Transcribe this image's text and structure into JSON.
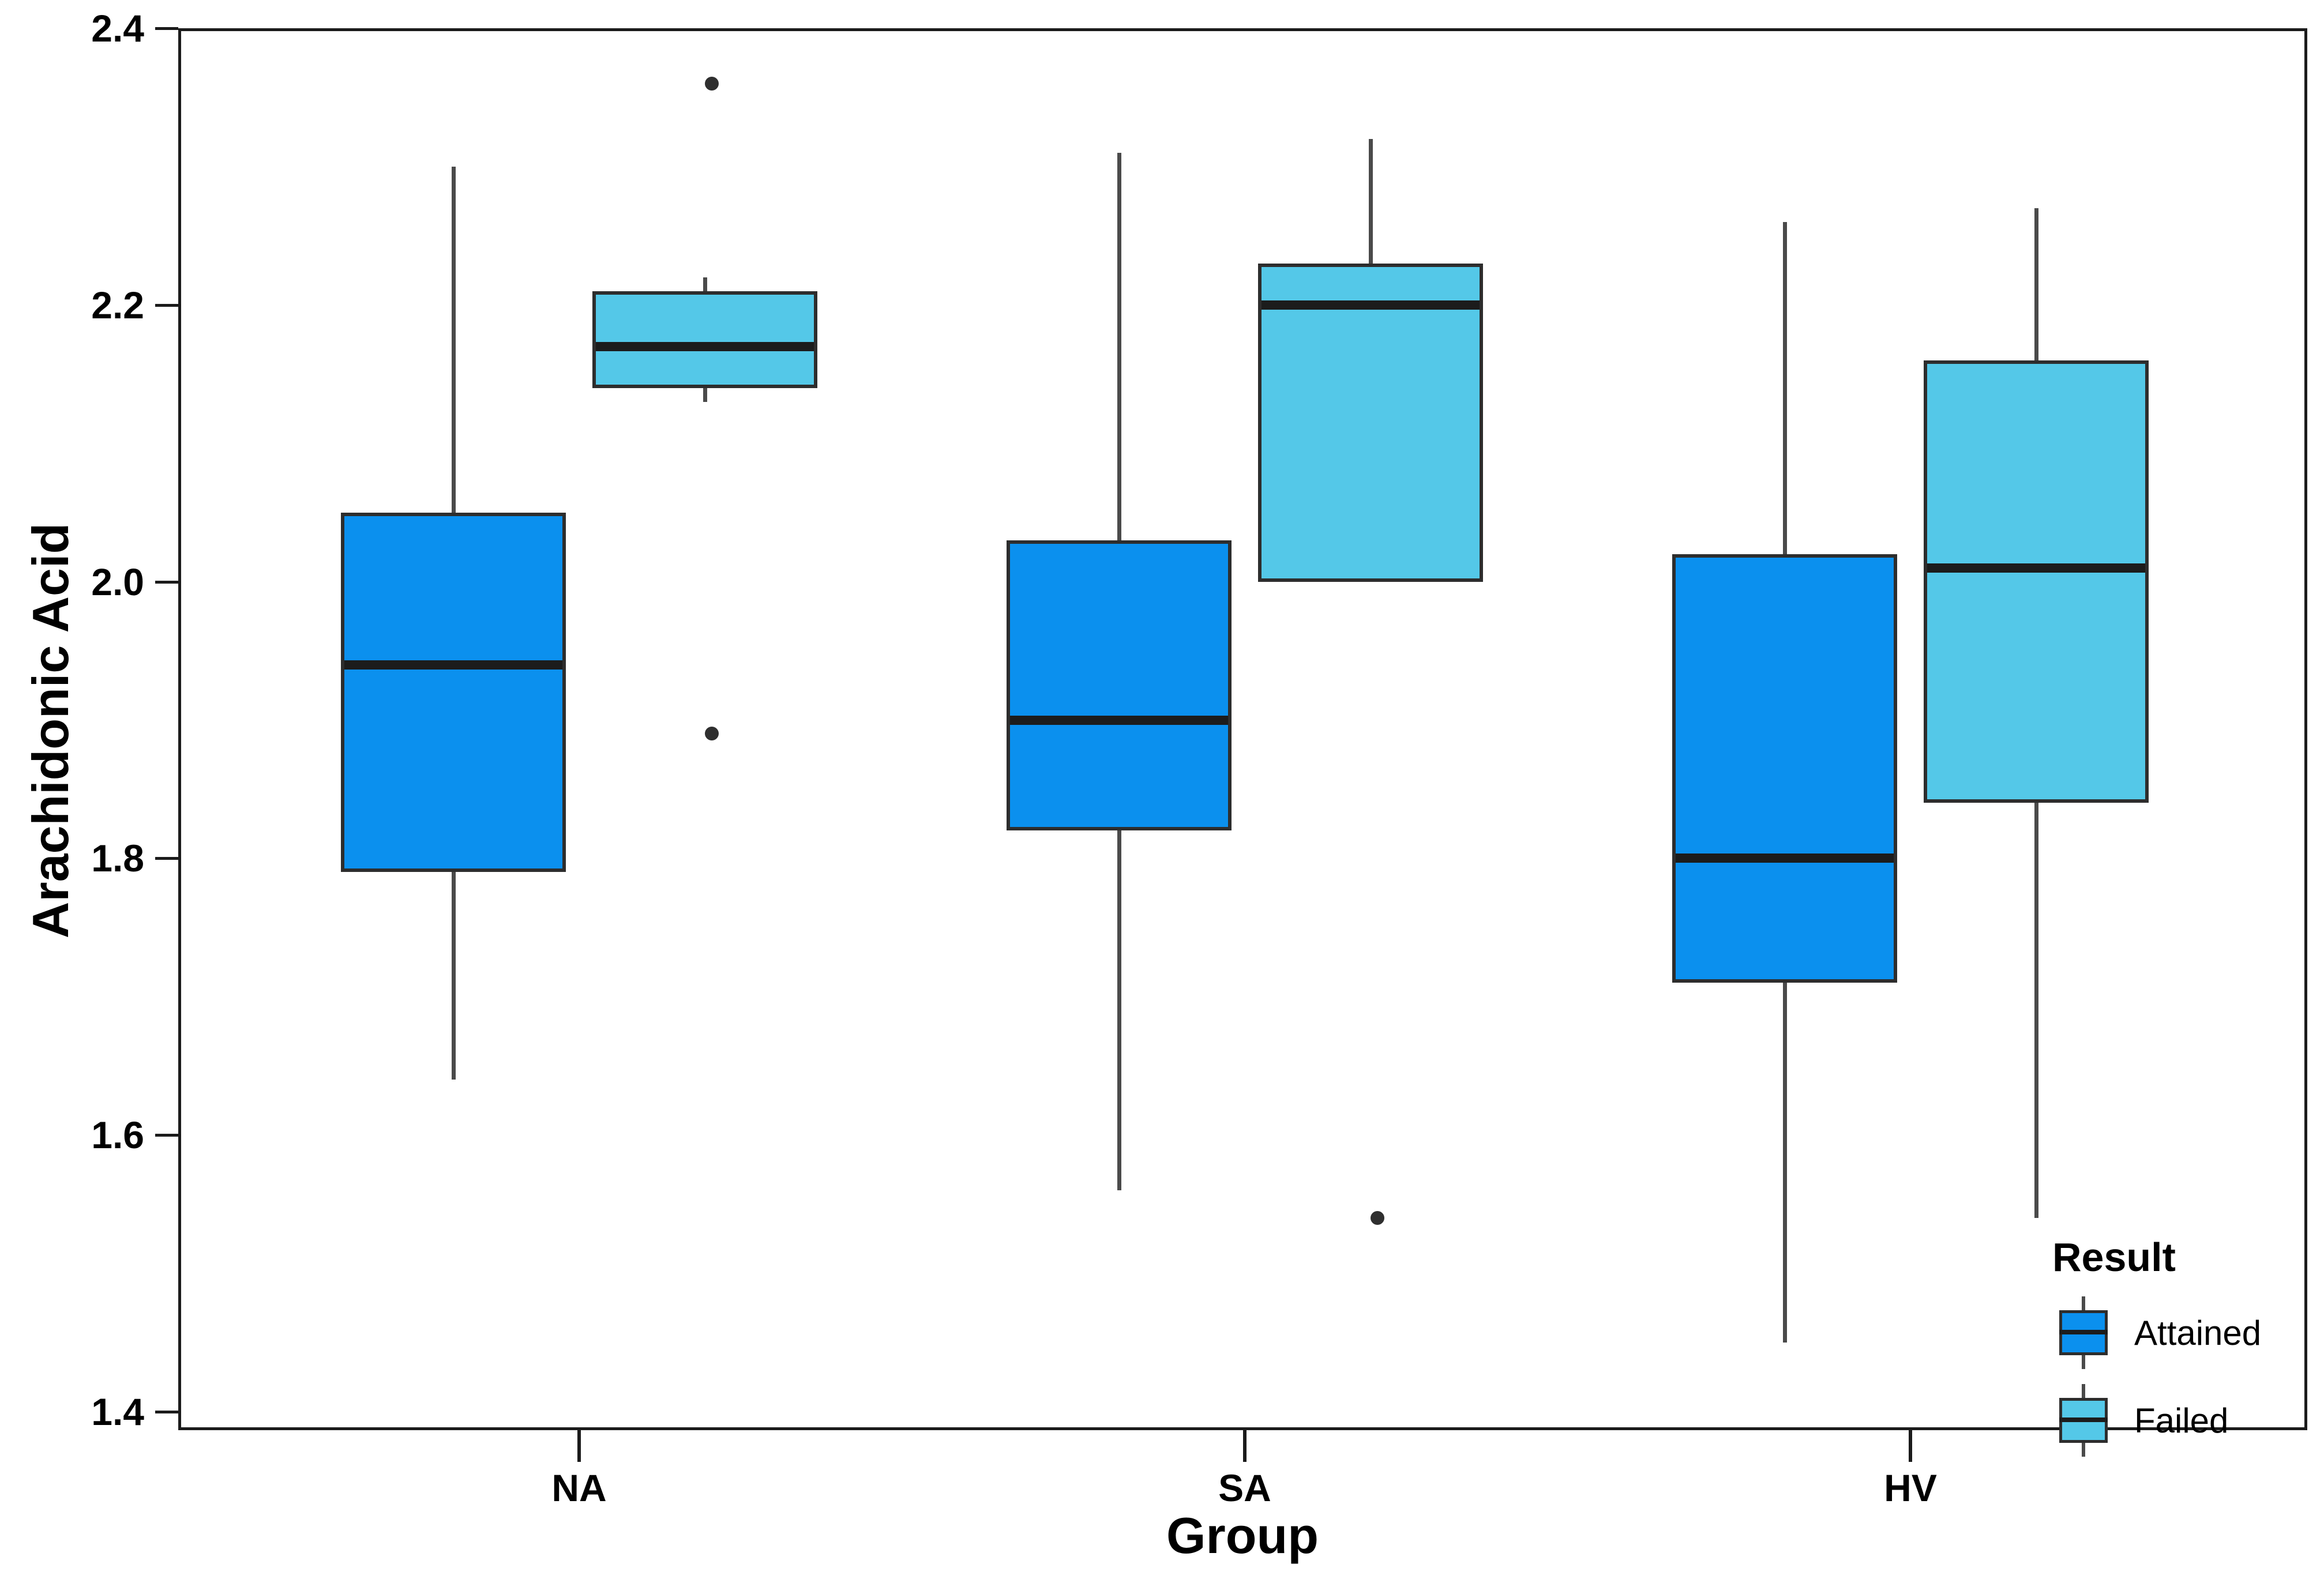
{
  "figure": {
    "background": "#ffffff",
    "accent_colors": {
      "attained_blue": "#0B90EE",
      "failed_cyan": "#54C8E8",
      "box_border": "#2d2d2d",
      "median_line": "#1c1c1c",
      "whisker_gray": "#4a4a4a",
      "outlier_dot": "#2f2f2f"
    }
  },
  "chart_data": {
    "type": "boxplot",
    "title": "",
    "xlabel": "Group",
    "ylabel": "Arachidonic Acid",
    "categories": [
      "NA",
      "SA",
      "HV"
    ],
    "y_ticks": [
      2.4,
      2.2,
      2.0,
      1.8,
      1.6,
      1.4
    ],
    "ylim": [
      1.3867,
      2.4
    ],
    "grid": false,
    "legend": {
      "title": "Result",
      "position": "bottom-right",
      "entries": [
        {
          "label": "Attained",
          "color": "#0B90EE"
        },
        {
          "label": "Failed",
          "color": "#54C8E8"
        }
      ]
    },
    "series": [
      {
        "name": "Attained",
        "color": "#0B90EE",
        "boxes": [
          {
            "category": "NA",
            "min": 1.64,
            "q1": 1.79,
            "median": 1.94,
            "q3": 2.05,
            "max": 2.3,
            "outliers": []
          },
          {
            "category": "SA",
            "min": 1.56,
            "q1": 1.82,
            "median": 1.9,
            "q3": 2.03,
            "max": 2.31,
            "outliers": []
          },
          {
            "category": "HV",
            "min": 1.45,
            "q1": 1.71,
            "median": 1.8,
            "q3": 2.02,
            "max": 2.26,
            "outliers": []
          }
        ]
      },
      {
        "name": "Failed",
        "color": "#54C8E8",
        "boxes": [
          {
            "category": "NA",
            "min": 2.13,
            "q1": 2.14,
            "median": 2.17,
            "q3": 2.21,
            "max": 2.22,
            "outliers": [
              2.36,
              1.89
            ]
          },
          {
            "category": "SA",
            "min": 2.0,
            "q1": 2.0,
            "median": 2.2,
            "q3": 2.23,
            "max": 2.32,
            "outliers": [
              1.54
            ]
          },
          {
            "category": "HV",
            "min": 1.54,
            "q1": 1.84,
            "median": 2.01,
            "q3": 2.16,
            "max": 2.27,
            "outliers": []
          }
        ]
      }
    ]
  }
}
